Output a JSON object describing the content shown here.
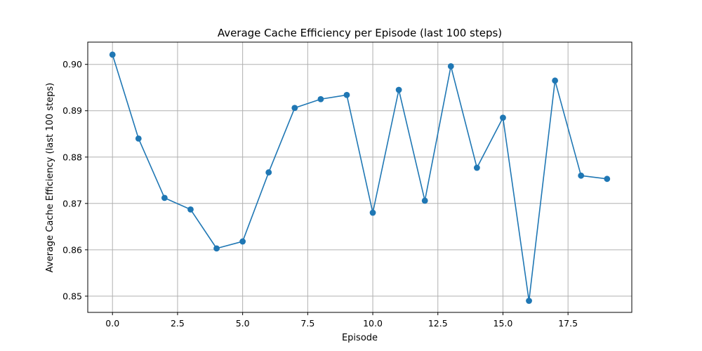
{
  "chart_data": {
    "type": "line",
    "title": "Average Cache Efficiency per Episode (last 100 steps)",
    "xlabel": "Episode",
    "ylabel": "Average Cache Efficiency (last 100 steps)",
    "xlim": [
      -0.95,
      19.95
    ],
    "ylim": [
      0.8465,
      0.9048
    ],
    "xticks": [
      0.0,
      2.5,
      5.0,
      7.5,
      10.0,
      12.5,
      15.0,
      17.5
    ],
    "xtick_labels": [
      "0.0",
      "2.5",
      "5.0",
      "7.5",
      "10.0",
      "12.5",
      "15.0",
      "17.5"
    ],
    "yticks": [
      0.85,
      0.86,
      0.87,
      0.88,
      0.89,
      0.9
    ],
    "ytick_labels": [
      "0.85",
      "0.86",
      "0.87",
      "0.88",
      "0.89",
      "0.90"
    ],
    "grid": true,
    "marker": "circle",
    "color": "#1f77b4",
    "series": [
      {
        "x": [
          0,
          1,
          2,
          3,
          4,
          5,
          6,
          7,
          8,
          9,
          10,
          11,
          12,
          13,
          14,
          15,
          16,
          17,
          18,
          19
        ],
        "values": [
          0.9021,
          0.884,
          0.8712,
          0.8687,
          0.8603,
          0.8618,
          0.8767,
          0.8906,
          0.8925,
          0.8934,
          0.868,
          0.8945,
          0.8706,
          0.8996,
          0.8777,
          0.8885,
          0.849,
          0.8965,
          0.876,
          0.8753
        ]
      }
    ]
  }
}
